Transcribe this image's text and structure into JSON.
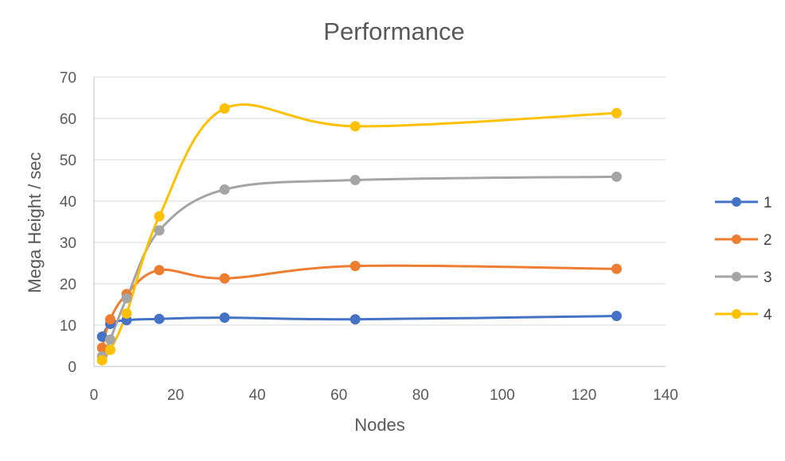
{
  "chart_data": {
    "type": "line",
    "title": "Performance",
    "xlabel": "Nodes",
    "ylabel": "Mega Height / sec",
    "xlim": [
      0,
      140
    ],
    "ylim": [
      0,
      70
    ],
    "xticks": [
      0,
      20,
      40,
      60,
      80,
      100,
      120,
      140
    ],
    "yticks": [
      0,
      10,
      20,
      30,
      40,
      50,
      60,
      70
    ],
    "grid": "horizontal",
    "smooth": true,
    "legend_position": "right",
    "x": [
      2,
      4,
      8,
      16,
      32,
      64,
      128
    ],
    "series": [
      {
        "name": "1",
        "color": "#4472C4",
        "values": [
          7.2,
          10.3,
          11.2,
          11.5,
          11.8,
          11.4,
          12.2
        ]
      },
      {
        "name": "2",
        "color": "#ED7D31",
        "values": [
          4.5,
          11.4,
          17.5,
          23.3,
          21.3,
          24.3,
          23.6
        ]
      },
      {
        "name": "3",
        "color": "#A5A5A5",
        "values": [
          2.4,
          6.5,
          16.5,
          32.9,
          42.8,
          45.1,
          45.9
        ]
      },
      {
        "name": "4",
        "color": "#FFC000",
        "values": [
          1.5,
          4.0,
          12.8,
          36.3,
          62.4,
          58.1,
          61.3
        ]
      }
    ]
  }
}
